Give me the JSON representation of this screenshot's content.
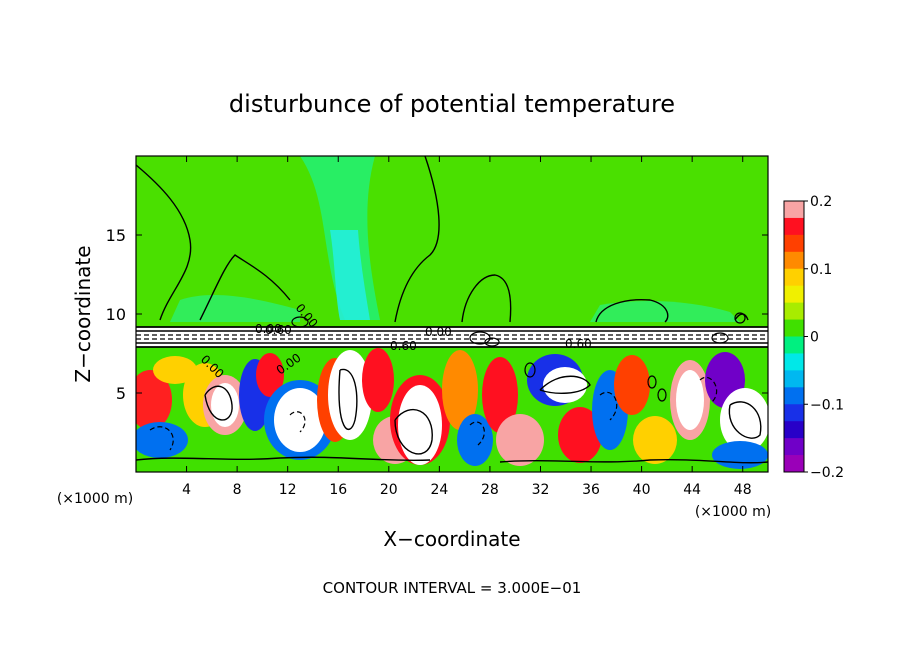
{
  "chart_data": {
    "type": "heatmap",
    "title": "disturbunce of potential temperature",
    "xlabel": "X−coordinate",
    "ylabel": "Z−coordinate",
    "x_unit_label_left": "(×1000 m)",
    "x_unit_label_right": "(×1000 m)",
    "footer": "CONTOUR INTERVAL = 3.000E−01",
    "xlim": [
      0,
      50
    ],
    "ylim": [
      0,
      20
    ],
    "x_ticks": [
      4,
      8,
      12,
      16,
      20,
      24,
      28,
      32,
      36,
      40,
      44,
      48
    ],
    "x_tick_labels": [
      "4",
      "8",
      "12",
      "16",
      "20",
      "24",
      "28",
      "32",
      "36",
      "40",
      "44",
      "48"
    ],
    "y_ticks": [
      5,
      10,
      15
    ],
    "y_tick_labels": [
      "5",
      "10",
      "15"
    ],
    "colorbar": {
      "range": [
        -0.2,
        0.2
      ],
      "tick_values": [
        0.2,
        0.1,
        0,
        -0.1,
        -0.2
      ],
      "tick_labels": [
        "0.2",
        "0.1",
        "0",
        "−0.1",
        "−0.2"
      ],
      "colors": [
        "#f8a4a4",
        "#ff1020",
        "#ff4000",
        "#ff8a00",
        "#ffd000",
        "#f0f000",
        "#a8ec00",
        "#40e000",
        "#00f080",
        "#00e8e8",
        "#00b8f0",
        "#0070f0",
        "#1830e8",
        "#2800c8",
        "#7000c8",
        "#9a00b8"
      ]
    },
    "contour_labels": [
      "0.00",
      "0.00",
      "0.00",
      "0.00",
      "0.00",
      "0.60",
      "0.60",
      "0.60"
    ],
    "upper_level_value": 0,
    "layer_top_z": 9.2,
    "layer_bottom_z": 8.0
  },
  "colors": {
    "upper_green": "#4ae000",
    "light_green": "#1ef07a",
    "cyan": "#22eedd",
    "white": "#ffffff"
  }
}
